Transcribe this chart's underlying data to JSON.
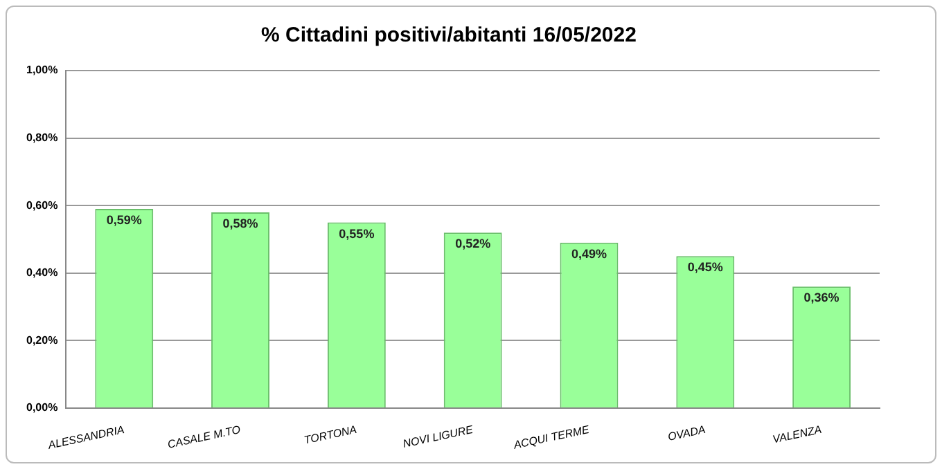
{
  "chart_data": {
    "type": "bar",
    "title": "% Cittadini positivi/abitanti 16/05/2022",
    "categories": [
      "ALESSANDRIA",
      "CASALE M.TO",
      "TORTONA",
      "NOVI LIGURE",
      "ACQUI TERME",
      "OVADA",
      "VALENZA"
    ],
    "values": [
      0.59,
      0.58,
      0.55,
      0.52,
      0.49,
      0.45,
      0.36
    ],
    "value_labels": [
      "0,59%",
      "0,58%",
      "0,55%",
      "0,52%",
      "0,49%",
      "0,45%",
      "0,36%"
    ],
    "color": "#99ff99",
    "ylim": [
      0,
      1
    ],
    "yticks": [
      {
        "value": 0,
        "label": "0,00%"
      },
      {
        "value": 0.2,
        "label": "0,20%"
      },
      {
        "value": 0.4,
        "label": "0,40%"
      },
      {
        "value": 0.6,
        "label": "0,60%"
      },
      {
        "value": 0.8,
        "label": "0,80%"
      },
      {
        "value": 1,
        "label": "1,00%"
      }
    ],
    "grid": "y",
    "legend": false
  }
}
